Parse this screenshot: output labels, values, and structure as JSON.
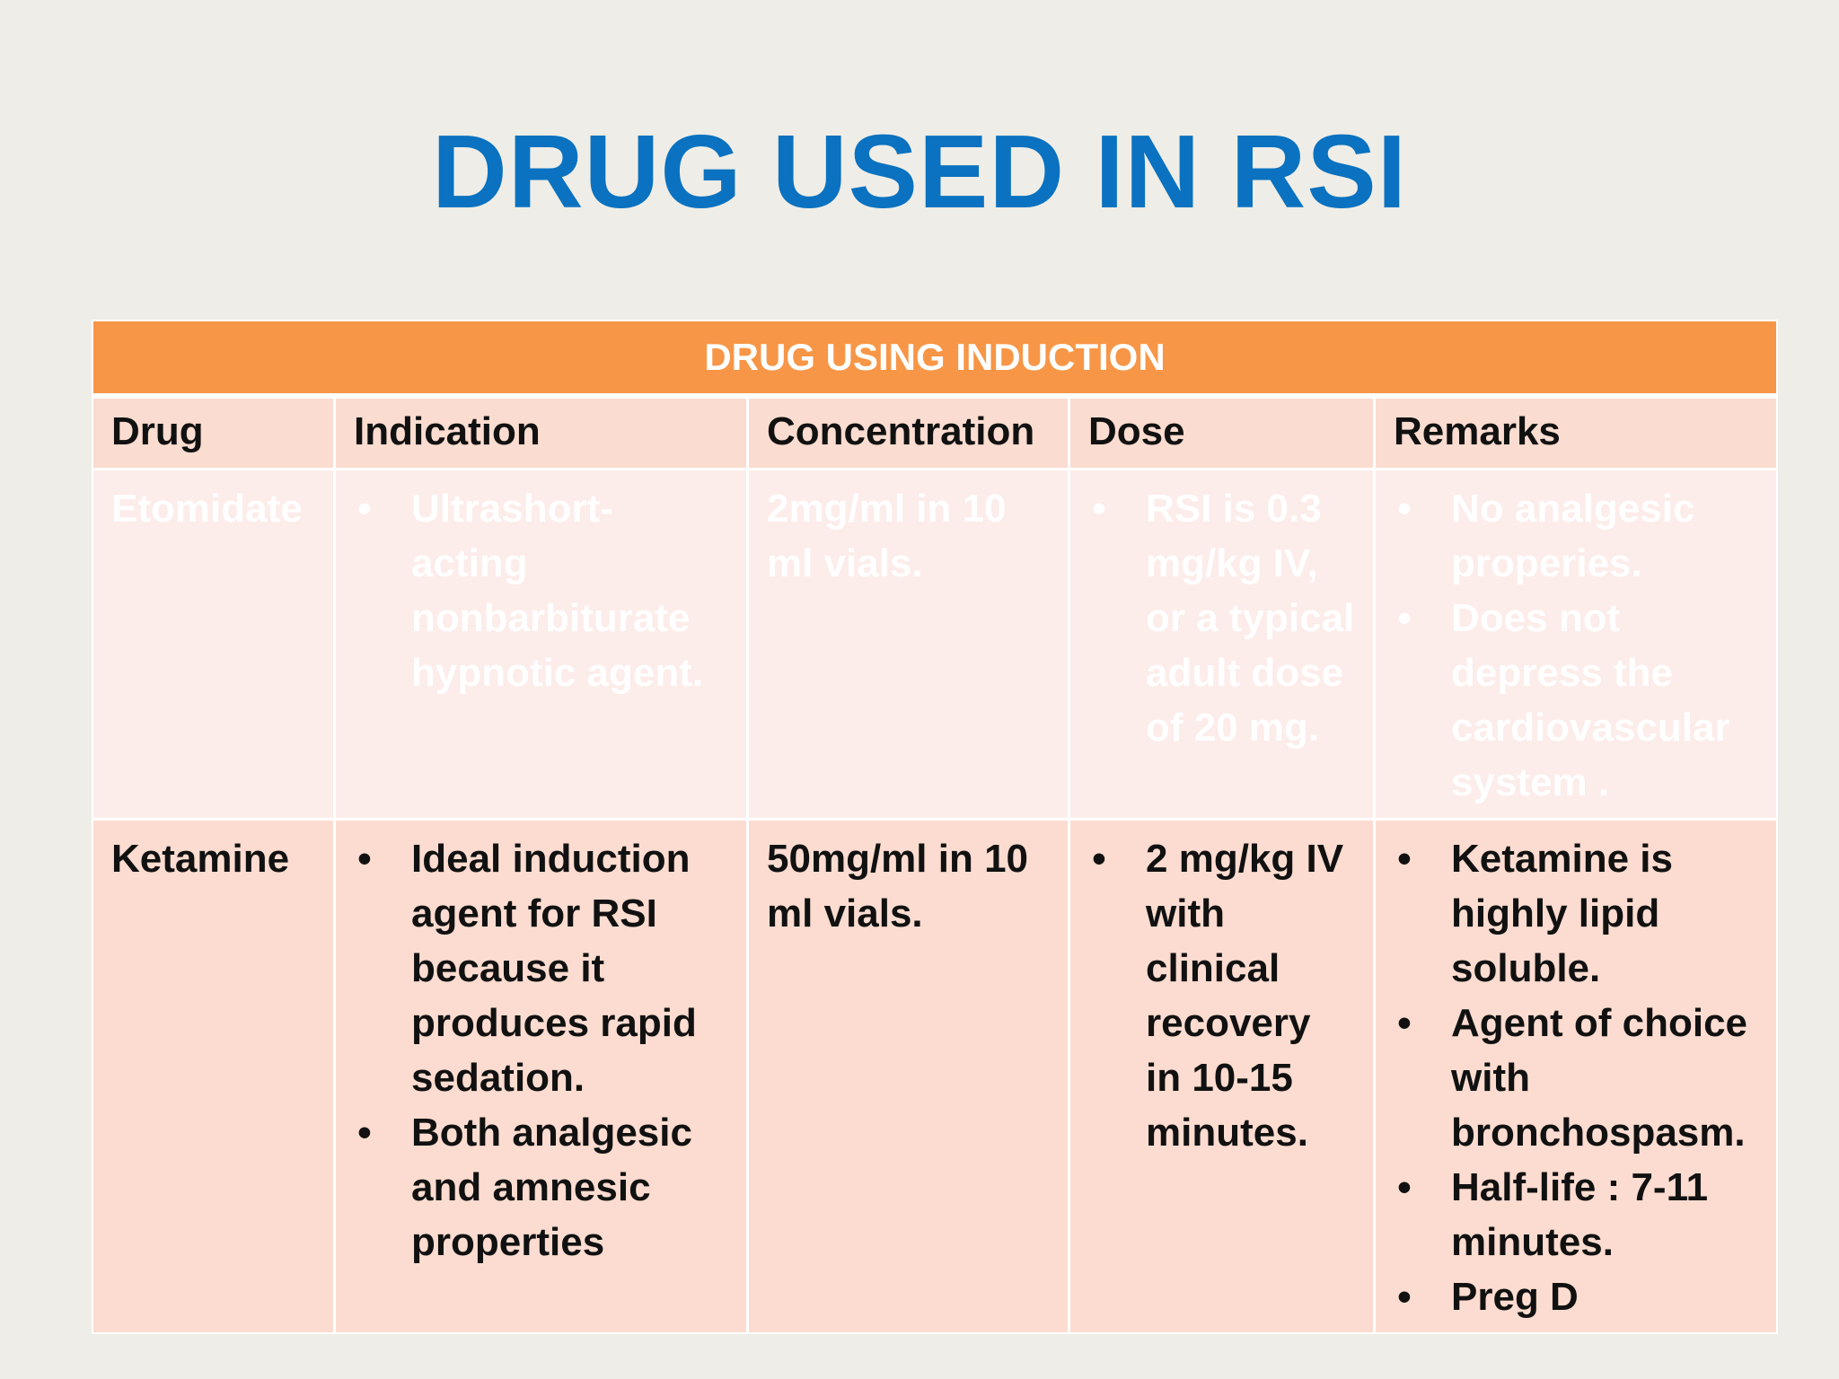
{
  "slide": {
    "title": "DRUG USED IN RSI"
  },
  "table": {
    "banner": "DRUG USING INDUCTION",
    "headers": [
      "Drug",
      "Indication",
      "Concentration",
      "Dose",
      "Remarks"
    ],
    "rows": [
      {
        "drug": "Etomidate",
        "indication": [
          "Ultrashort-acting nonbarbiturate hypnotic agent."
        ],
        "concentration": "2mg/ml in 10 ml vials.",
        "dose": [
          "RSI is 0.3 mg/kg IV, or a typical adult dose of 20 mg."
        ],
        "remarks": [
          "No analgesic properies.",
          "Does not depress the cardiovascular system ."
        ]
      },
      {
        "drug": "Ketamine",
        "indication": [
          "Ideal induction agent for RSI because it produces rapid sedation.",
          "Both analgesic and amnesic properties"
        ],
        "concentration": "50mg/ml in 10 ml vials.",
        "dose": [
          "2 mg/kg IV with clinical recovery in 10-15 minutes."
        ],
        "remarks": [
          "Ketamine is highly lipid soluble.",
          "Agent of choice with bronchospasm.",
          "Half-life : 7-11 minutes.",
          "Preg D"
        ]
      }
    ]
  }
}
